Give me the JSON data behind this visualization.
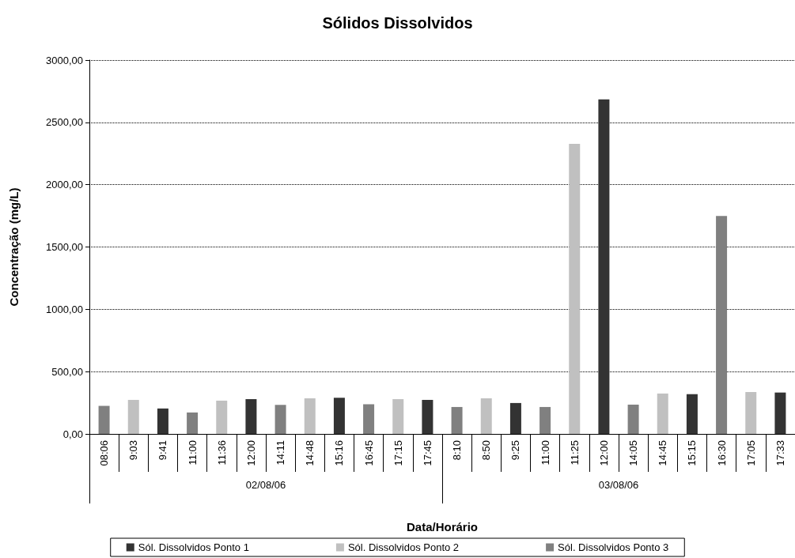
{
  "chart_data": {
    "type": "bar",
    "title": "Sólidos Dissolvidos",
    "xlabel": "Data/Horário",
    "ylabel": "Concentração (mg/L)",
    "categories": [
      "08:06",
      "9:03",
      "9:41",
      "11:00",
      "11:36",
      "12:00",
      "14:11",
      "14:48",
      "15:16",
      "16:45",
      "17:15",
      "17:45",
      "8:10",
      "8:50",
      "9:25",
      "11:00",
      "11:25",
      "12:00",
      "14:05",
      "14:45",
      "15:15",
      "16:30",
      "17:05",
      "17:33"
    ],
    "annotations": [
      "02/08/06",
      "03/08/06"
    ],
    "series": [
      {
        "name": "Sól. Dissolvidos Ponto 1",
        "color": "#333333",
        "values": [
          null,
          null,
          204,
          null,
          null,
          279,
          null,
          null,
          290,
          null,
          null,
          273,
          null,
          null,
          248,
          null,
          null,
          2685,
          null,
          null,
          319,
          null,
          null,
          332
        ]
      },
      {
        "name": "Sól. Dissolvidos Ponto 2",
        "color": "#c0c0c0",
        "values": [
          null,
          273,
          null,
          null,
          267,
          null,
          null,
          286,
          null,
          null,
          279,
          null,
          null,
          286,
          null,
          null,
          2327,
          null,
          null,
          324,
          null,
          null,
          336,
          null
        ]
      },
      {
        "name": "Sól. Dissolvidos Ponto 3",
        "color": "#808080",
        "values": [
          225,
          null,
          null,
          172,
          null,
          null,
          233,
          null,
          null,
          238,
          null,
          null,
          216,
          null,
          null,
          216,
          null,
          null,
          235,
          null,
          null,
          1749,
          null,
          null
        ]
      }
    ],
    "ylim": [
      0,
      3000
    ],
    "yticks": [
      {
        "value": 0,
        "label": "0,00"
      },
      {
        "value": 500,
        "label": "500,00"
      },
      {
        "value": 1000,
        "label": "1000,00"
      },
      {
        "value": 1500,
        "label": "1500,00"
      },
      {
        "value": 2000,
        "label": "2000,00"
      },
      {
        "value": 2500,
        "label": "2500,00"
      },
      {
        "value": 3000,
        "label": "3000,00"
      }
    ],
    "grid": "y",
    "legend": "bottom"
  }
}
